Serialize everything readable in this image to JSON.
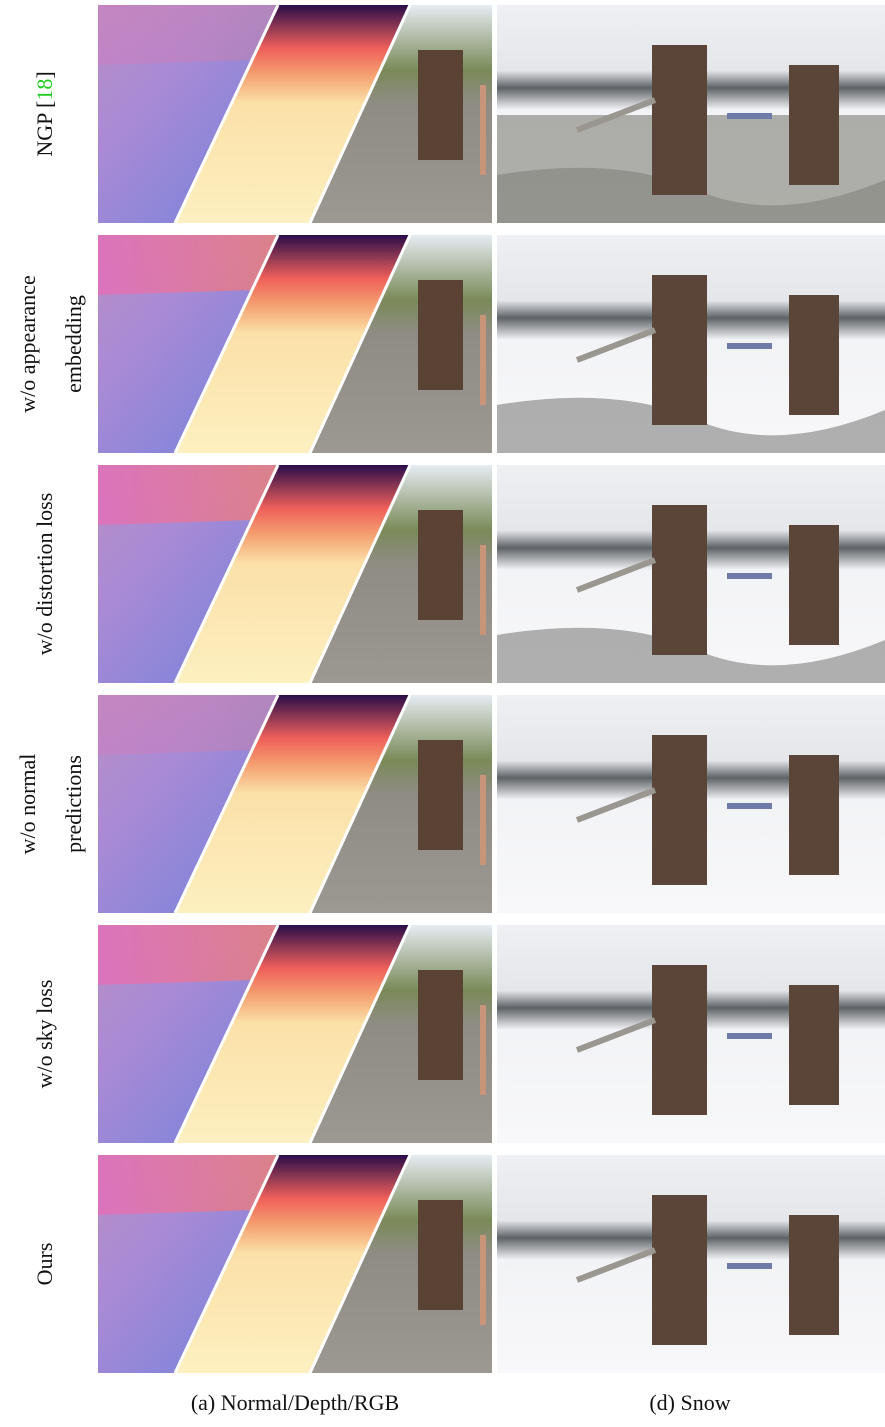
{
  "rows": [
    {
      "lines": [
        [
          "NGP [",
          "18",
          "]"
        ]
      ]
    },
    {
      "lines": [
        [
          "w/o appearance"
        ],
        [
          "embedding"
        ]
      ]
    },
    {
      "lines": [
        [
          "w/o distortion loss"
        ]
      ]
    },
    {
      "lines": [
        [
          "w/o normal"
        ],
        [
          "predictions"
        ]
      ]
    },
    {
      "lines": [
        [
          "w/o sky loss"
        ]
      ]
    },
    {
      "lines": [
        [
          "Ours"
        ]
      ]
    }
  ],
  "captions": [
    "(a) Normal/Depth/RGB",
    "(d) Snow"
  ]
}
